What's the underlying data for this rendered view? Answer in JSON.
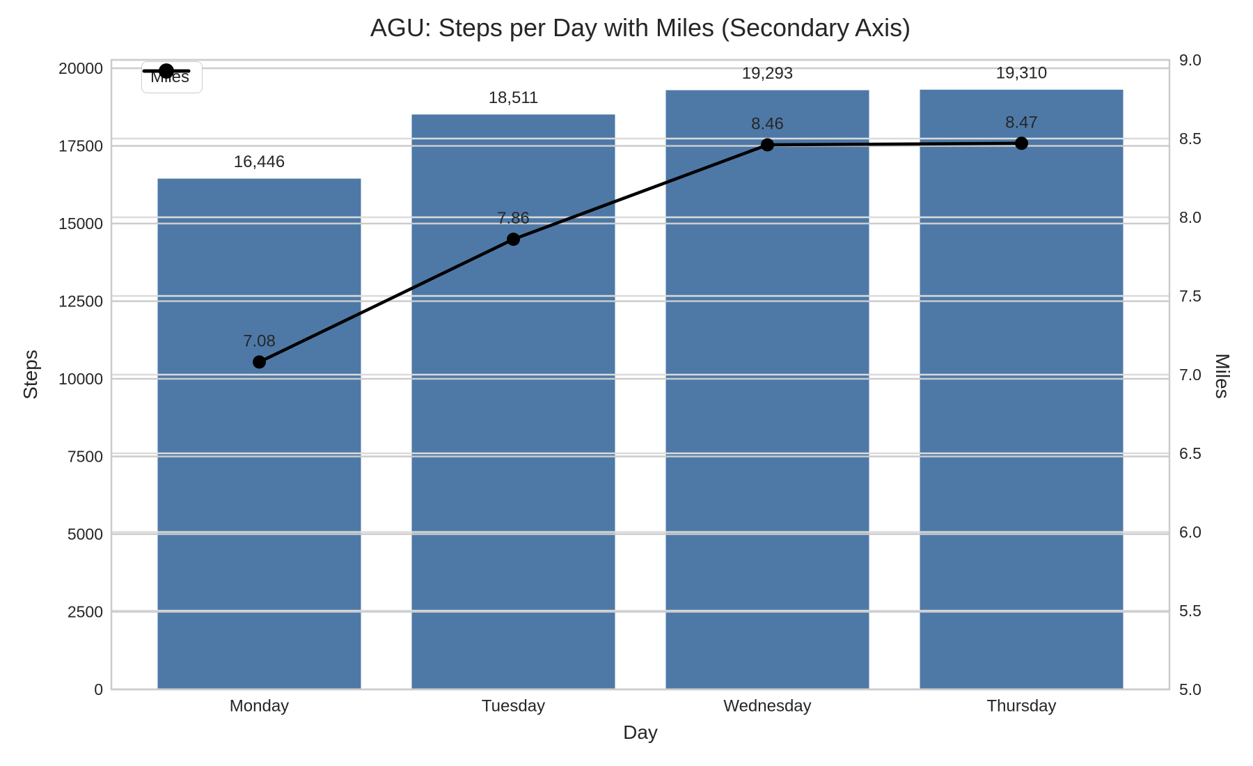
{
  "chart_data": {
    "type": "bar",
    "title": "AGU: Steps per Day with Miles (Secondary Axis)",
    "xlabel": "Day",
    "ylabel_left": "Steps",
    "ylabel_right": "Miles",
    "categories": [
      "Monday",
      "Tuesday",
      "Wednesday",
      "Thursday"
    ],
    "series": [
      {
        "name": "Steps",
        "render": "bar",
        "axis": "left",
        "values": [
          16446,
          18511,
          19293,
          19310
        ],
        "labels": [
          "16,446",
          "18,511",
          "19,293",
          "19,310"
        ],
        "color": "#4e79a7"
      },
      {
        "name": "Miles",
        "render": "line",
        "axis": "right",
        "values": [
          7.08,
          7.86,
          8.46,
          8.47
        ],
        "labels": [
          "7.08",
          "7.86",
          "8.46",
          "8.47"
        ],
        "color": "#000000"
      }
    ],
    "ylim_left": [
      0,
      20000
    ],
    "ylim_right": [
      5.0,
      9.0
    ],
    "yticks_left": {
      "values": [
        0,
        2500,
        5000,
        7500,
        10000,
        12500,
        15000,
        17500,
        20000
      ],
      "labels": [
        "0",
        "2500",
        "5000",
        "7500",
        "10000",
        "12500",
        "15000",
        "17500",
        "20000"
      ]
    },
    "yticks_right": {
      "values": [
        5.0,
        5.5,
        6.0,
        6.5,
        7.0,
        7.5,
        8.0,
        8.5,
        9.0
      ],
      "labels": [
        "5.0",
        "5.5",
        "6.0",
        "6.5",
        "7.0",
        "7.5",
        "8.0",
        "8.5",
        "9.0"
      ]
    },
    "legend": {
      "position": "upper left",
      "entries": [
        {
          "label": "Miles",
          "marker": "line-dot",
          "color": "#000000"
        }
      ]
    },
    "grid": true,
    "grid_color_left": "#cccccc",
    "grid_color_right": "#dbdbdb",
    "spine_color": "#cccccc",
    "text_color": "#262626"
  }
}
